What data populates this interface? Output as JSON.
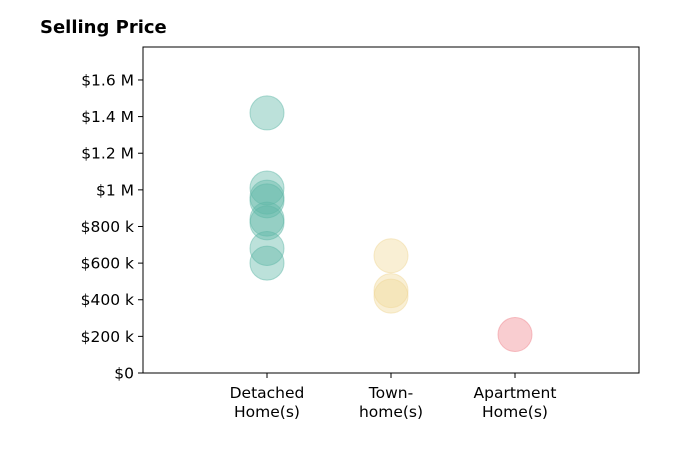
{
  "chart_data": {
    "type": "scatter",
    "title": "Selling Price",
    "xlabel": "",
    "ylabel": "",
    "categories": [
      [
        "Detached",
        "Home(s)"
      ],
      [
        "Town-",
        "home(s)"
      ],
      [
        "Apartment",
        "Home(s)"
      ]
    ],
    "yticks": [
      {
        "value": 0,
        "label": "$0"
      },
      {
        "value": 200000,
        "label": "$200 k"
      },
      {
        "value": 400000,
        "label": "$400 k"
      },
      {
        "value": 600000,
        "label": "$600 k"
      },
      {
        "value": 800000,
        "label": "$800 k"
      },
      {
        "value": 1000000,
        "label": "$1 M"
      },
      {
        "value": 1200000,
        "label": "$1.2 M"
      },
      {
        "value": 1400000,
        "label": "$1.4 M"
      },
      {
        "value": 1600000,
        "label": "$1.6 M"
      }
    ],
    "ylim": [
      0,
      1780000
    ],
    "xlim": [
      -1,
      3
    ],
    "grid": false,
    "series": [
      {
        "color": "#5fb8a8",
        "category": 0,
        "values": [
          1420000,
          1010000,
          960000,
          940000,
          840000,
          820000,
          680000,
          600000
        ]
      },
      {
        "color": "#f0d898",
        "category": 1,
        "values": [
          640000,
          450000,
          420000
        ]
      },
      {
        "color": "#f08890",
        "category": 2,
        "values": [
          210000
        ]
      }
    ]
  }
}
